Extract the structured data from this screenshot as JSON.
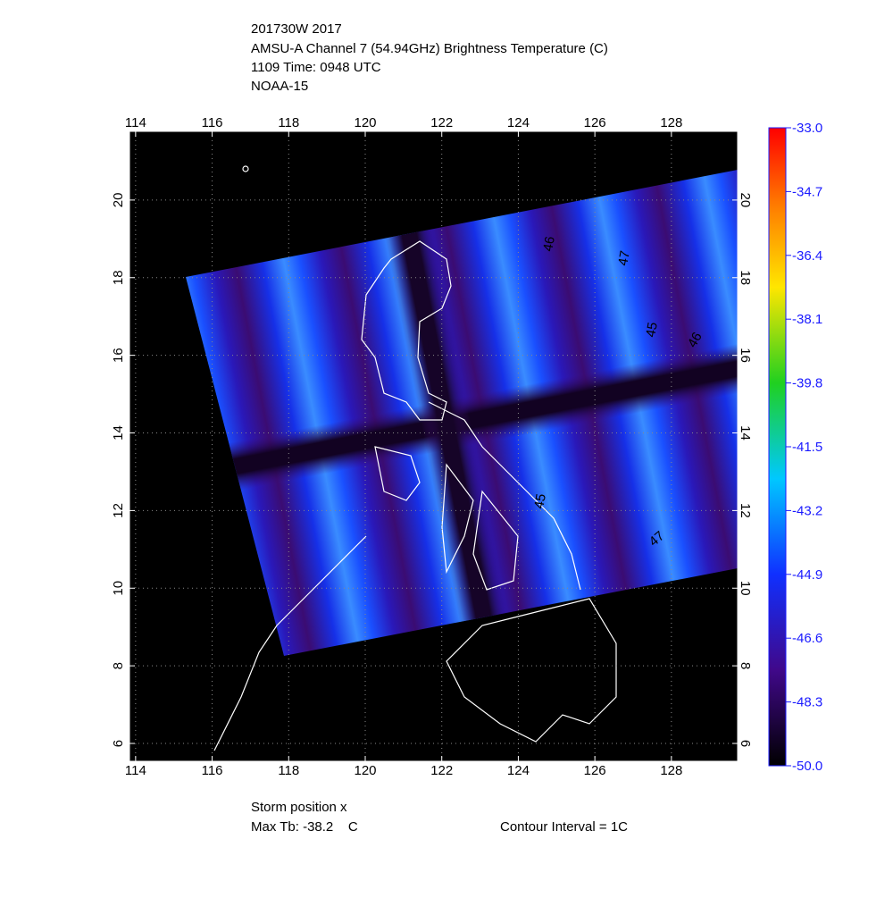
{
  "header": {
    "lines": [
      "201730W 2017",
      "AMSU-A Channel 7 (54.94GHz) Brightness Temperature (C)",
      "1109 Time: 0948 UTC",
      "NOAA-15"
    ]
  },
  "map": {
    "lon_range": [
      113.84,
      129.73
    ],
    "lat_range": [
      5.54,
      21.77
    ],
    "lon_ticks": [
      114,
      116,
      118,
      120,
      122,
      124,
      126,
      128
    ],
    "lat_ticks": [
      6,
      8,
      10,
      12,
      14,
      16,
      18,
      20
    ],
    "contour_labels": [
      "46",
      "47",
      "45",
      "46",
      "45",
      "47"
    ]
  },
  "colorbar": {
    "range": [
      -50,
      -33
    ],
    "ticks": [
      {
        "value": -33,
        "label": "-33.0"
      },
      {
        "value": -34.7,
        "label": "-34.7"
      },
      {
        "value": -36.4,
        "label": "-36.4"
      },
      {
        "value": -38.1,
        "label": "-38.1"
      },
      {
        "value": -39.8,
        "label": "-39.8"
      },
      {
        "value": -41.5,
        "label": "-41.5"
      },
      {
        "value": -43.2,
        "label": "-43.2"
      },
      {
        "value": -44.9,
        "label": "-44.9"
      },
      {
        "value": -46.6,
        "label": "-46.6"
      },
      {
        "value": -48.3,
        "label": "-48.3"
      },
      {
        "value": -50,
        "label": "-50.0"
      }
    ]
  },
  "footer": {
    "storm": "Storm position x",
    "max_tb": "Max Tb: -38.2    C",
    "contour": "Contour Interval = 1C"
  }
}
